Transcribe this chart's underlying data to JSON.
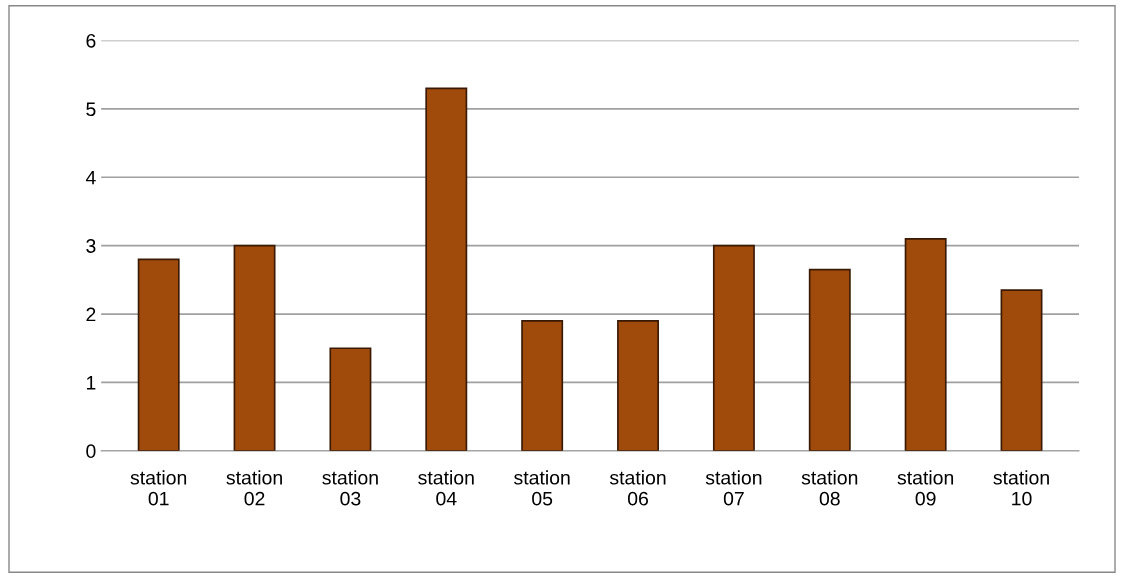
{
  "chart_data": {
    "type": "bar",
    "categories": [
      "station\n01",
      "station\n02",
      "station\n03",
      "station\n04",
      "station\n05",
      "station\n06",
      "station\n07",
      "station\n08",
      "station\n09",
      "station\n10"
    ],
    "values": [
      2.8,
      3.0,
      1.5,
      5.3,
      1.9,
      1.9,
      3.0,
      2.65,
      3.1,
      2.35
    ],
    "color": "#a04b0c",
    "ylim": [
      0,
      6
    ],
    "yticks": [
      0,
      1,
      2,
      3,
      4,
      5,
      6
    ],
    "grid": "y"
  }
}
